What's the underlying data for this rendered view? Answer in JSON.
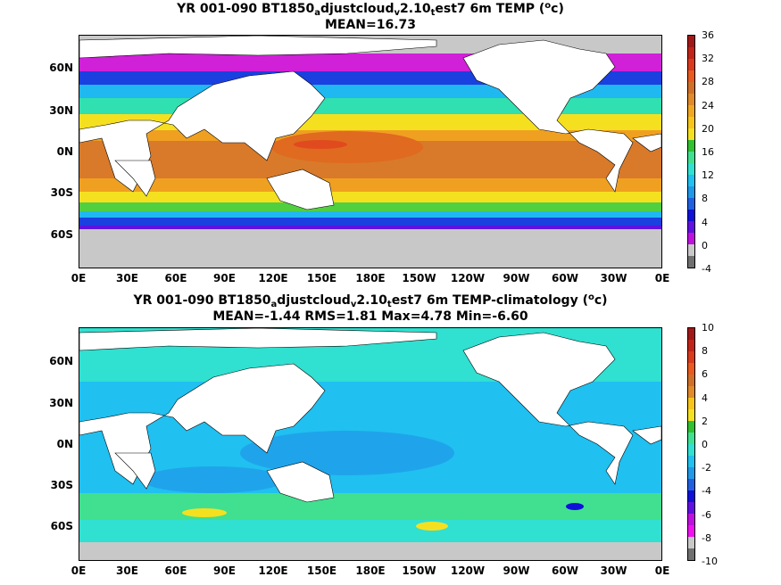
{
  "panel1": {
    "title_main": "YR 001-090 BT1850",
    "title_sub1": "a",
    "title_mid": "djustcloud",
    "title_sub2": "v",
    "title_mid2": "2.10",
    "title_sub3": "t",
    "title_end": "est7 6m TEMP (",
    "title_sup": "o",
    "title_unit": "c)",
    "stats": "MEAN=16.73",
    "lat_labels": [
      "60N",
      "30N",
      "0N",
      "30S",
      "60S"
    ],
    "lon_labels": [
      "0E",
      "30E",
      "60E",
      "90E",
      "120E",
      "150E",
      "180E",
      "150W",
      "120W",
      "90W",
      "60W",
      "30W",
      "0E"
    ],
    "colorbar_labels": [
      "36",
      "32",
      "28",
      "24",
      "20",
      "16",
      "12",
      "8",
      "4",
      "0",
      "-4"
    ],
    "colorbar_colors": [
      "#000000"
    ]
  },
  "panel2": {
    "title_main": "YR 001-090 BT1850",
    "title_sub1": "a",
    "title_mid": "djustcloud",
    "title_sub2": "v",
    "title_mid2": "2.10",
    "title_sub3": "t",
    "title_end": "est7 6m TEMP-climatology (",
    "title_sup": "o",
    "title_unit": "c)",
    "stats": "MEAN=-1.44   RMS=1.81   Max=4.78   Min=-6.60",
    "lat_labels": [
      "60N",
      "30N",
      "0N",
      "30S",
      "60S"
    ],
    "lon_labels": [
      "0E",
      "30E",
      "60E",
      "90E",
      "120E",
      "150E",
      "180E",
      "150W",
      "120W",
      "90W",
      "60W",
      "30W",
      "0E"
    ],
    "colorbar_labels": [
      "10",
      "8",
      "6",
      "4",
      "2",
      "0",
      "-2",
      "-4",
      "-6",
      "-8",
      "-10"
    ]
  },
  "colors": {
    "scale1": [
      "#b02020",
      "#d33a1f",
      "#e05a1e",
      "#c8682a",
      "#e08a2a",
      "#f0a020",
      "#f7c51a",
      "#f5e020",
      "#b8e030",
      "#30c030",
      "#40e090",
      "#30e0d0",
      "#20c0f0",
      "#2098e8",
      "#2060e0",
      "#1010d8",
      "#6010e0",
      "#c010e0",
      "#f010f0",
      "#c8c8c8",
      "#707070"
    ],
    "scale2": [
      "#b02020",
      "#d33a1f",
      "#e05a1e",
      "#c8682a",
      "#e08a2a",
      "#f7c51a",
      "#f5e020",
      "#30c030",
      "#40e090",
      "#30e0d0",
      "#20c0f0",
      "#2098e8",
      "#2060e0",
      "#1010d8",
      "#6010e0",
      "#c010e0",
      "#f010f0",
      "#c8c8c8",
      "#707070"
    ]
  }
}
